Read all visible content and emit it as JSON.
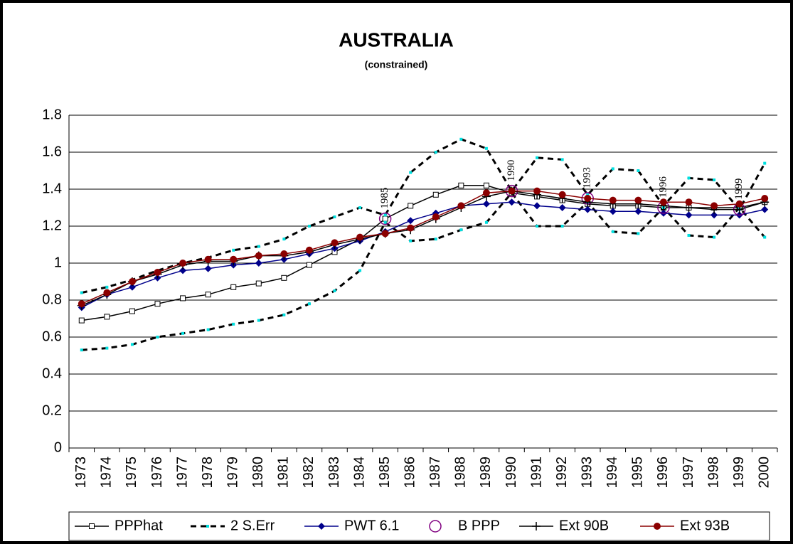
{
  "chart_data": {
    "type": "line",
    "title": "AUSTRALIA",
    "subtitle": "(constrained)",
    "categories": [
      "1973",
      "1974",
      "1975",
      "1976",
      "1977",
      "1978",
      "1979",
      "1980",
      "1981",
      "1982",
      "1983",
      "1984",
      "1985",
      "1986",
      "1987",
      "1988",
      "1989",
      "1990",
      "1991",
      "1992",
      "1993",
      "1994",
      "1995",
      "1996",
      "1997",
      "1998",
      "1999",
      "2000"
    ],
    "ylim": [
      0,
      1.8
    ],
    "yticks": [
      0,
      0.2,
      0.4,
      0.6,
      0.8,
      1,
      1.2,
      1.4,
      1.6,
      1.8
    ],
    "grid": true,
    "legend": "bottom",
    "series": [
      {
        "name": "PPPhat",
        "color": "#000000",
        "marker": "square",
        "values": [
          0.69,
          0.71,
          0.74,
          0.78,
          0.81,
          0.83,
          0.87,
          0.89,
          0.92,
          0.99,
          1.06,
          1.13,
          1.24,
          1.31,
          1.37,
          1.42,
          1.42,
          1.38,
          1.36,
          1.34,
          1.32,
          1.31,
          1.31,
          1.3,
          1.3,
          1.3,
          1.3,
          1.33
        ]
      },
      {
        "name": "2 S.Err",
        "color": "#000000",
        "marker": "dot",
        "marker_color": "#00e0e0",
        "dash": true,
        "values": [
          0.84,
          0.87,
          0.91,
          0.96,
          1.0,
          1.03,
          1.07,
          1.09,
          1.13,
          1.2,
          1.25,
          1.3,
          1.26,
          1.49,
          1.6,
          1.67,
          1.62,
          1.39,
          1.57,
          1.56,
          1.37,
          1.51,
          1.5,
          1.31,
          1.46,
          1.45,
          1.29,
          1.54
        ],
        "lower": [
          0.53,
          0.54,
          0.56,
          0.6,
          0.62,
          0.64,
          0.67,
          0.69,
          0.72,
          0.78,
          0.85,
          0.96,
          1.22,
          1.12,
          1.13,
          1.18,
          1.22,
          1.38,
          1.2,
          1.2,
          1.33,
          1.17,
          1.16,
          1.3,
          1.15,
          1.14,
          1.3,
          1.14
        ]
      },
      {
        "name": "PWT 6.1",
        "color": "#00008b",
        "marker": "diamond",
        "values": [
          0.76,
          0.83,
          0.87,
          0.92,
          0.96,
          0.97,
          0.99,
          1.0,
          1.02,
          1.05,
          1.08,
          1.12,
          1.17,
          1.23,
          1.27,
          1.31,
          1.32,
          1.33,
          1.31,
          1.3,
          1.29,
          1.28,
          1.28,
          1.27,
          1.26,
          1.26,
          1.26,
          1.29
        ]
      },
      {
        "name": "B PPP",
        "color": "#800080",
        "marker": "ring",
        "noline": true,
        "values": [
          null,
          null,
          null,
          null,
          null,
          null,
          null,
          null,
          null,
          null,
          null,
          null,
          1.24,
          null,
          null,
          null,
          null,
          1.39,
          null,
          null,
          1.35,
          null,
          null,
          1.3,
          null,
          null,
          1.29,
          null
        ],
        "point_labels": [
          null,
          null,
          null,
          null,
          null,
          null,
          null,
          null,
          null,
          null,
          null,
          null,
          "1985",
          null,
          null,
          null,
          null,
          "1990",
          null,
          null,
          "1993",
          null,
          null,
          "1996",
          null,
          null,
          "1999",
          null
        ]
      },
      {
        "name": "Ext 90B",
        "color": "#000000",
        "marker": "plus",
        "values": [
          0.77,
          0.83,
          0.9,
          0.94,
          0.99,
          1.01,
          1.01,
          1.04,
          1.04,
          1.06,
          1.1,
          1.13,
          1.16,
          1.18,
          1.24,
          1.3,
          1.36,
          1.39,
          1.37,
          1.35,
          1.33,
          1.32,
          1.32,
          1.31,
          1.3,
          1.29,
          1.29,
          1.33
        ]
      },
      {
        "name": "Ext 93B",
        "color": "#8b0000",
        "marker": "circle",
        "values": [
          0.78,
          0.84,
          0.9,
          0.95,
          1.0,
          1.02,
          1.02,
          1.04,
          1.05,
          1.07,
          1.11,
          1.14,
          1.16,
          1.19,
          1.25,
          1.31,
          1.38,
          1.39,
          1.39,
          1.37,
          1.35,
          1.34,
          1.34,
          1.33,
          1.33,
          1.31,
          1.32,
          1.35
        ]
      }
    ]
  }
}
